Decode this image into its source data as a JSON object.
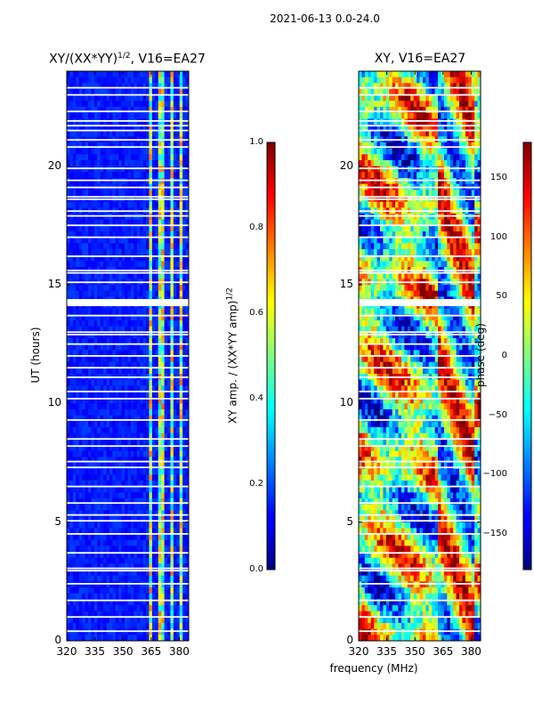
{
  "suptitle": "2021-06-13 0.0-24.0",
  "x_axis_label": "frequency (MHz)",
  "chart_data": [
    {
      "type": "heatmap",
      "title_text": "XY/(XX*YY)",
      "title_sup": "1/2",
      "title_suffix": ", V16=EA27",
      "xlabel": "",
      "ylabel": "UT (hours)",
      "xlim": [
        320,
        385
      ],
      "ylim": [
        0,
        24
      ],
      "xticks": [
        320,
        335,
        350,
        365,
        380
      ],
      "yticks": [
        0,
        5,
        10,
        15,
        20
      ],
      "colorbar": {
        "label_text": "XY amp. / (XX*YY amp)",
        "label_sup": "1/2",
        "range": [
          0.0,
          1.0
        ],
        "ticks": [
          "0.0",
          "0.2",
          "0.4",
          "0.6",
          "0.8",
          "1.0"
        ],
        "colormap": "jet"
      },
      "features": {
        "band_frequencies_mhz": [
          365,
          370,
          376,
          381
        ],
        "background_value": 0.15,
        "band_value": 0.55,
        "flagged_gap_hours": [
          14.1,
          14.4
        ]
      }
    },
    {
      "type": "heatmap",
      "title": "XY, V16=EA27",
      "xlabel": "frequency (MHz)",
      "ylabel": "",
      "xlim": [
        320,
        385
      ],
      "ylim": [
        0,
        24
      ],
      "xticks": [
        320,
        335,
        350,
        365,
        380
      ],
      "yticks": [
        0,
        5,
        10,
        15,
        20
      ],
      "colorbar": {
        "label": "phase (deg)",
        "range": [
          -180,
          180
        ],
        "ticks": [
          "150",
          "100",
          "50",
          "0",
          "−50",
          "−100",
          "−150"
        ],
        "colormap": "jet"
      },
      "features": {
        "flagged_gap_hours": [
          14.1,
          14.4
        ]
      }
    }
  ],
  "flagged_rows_hours": [
    0.4,
    1.0,
    1.7,
    2.4,
    2.95,
    3.05,
    3.7,
    4.5,
    5.05,
    5.3,
    5.8,
    6.5,
    7.3,
    7.55,
    8.2,
    8.5,
    9.3,
    10.2,
    10.5,
    11.1,
    11.5,
    12.0,
    12.5,
    12.9,
    13.0,
    13.7,
    15.1,
    15.5,
    15.6,
    16.2,
    17.0,
    17.5,
    17.9,
    18.1,
    18.6,
    18.7,
    19.1,
    19.4,
    19.9,
    20.8,
    21.1,
    21.5,
    21.7,
    21.9,
    22.3,
    23.0,
    23.3
  ]
}
